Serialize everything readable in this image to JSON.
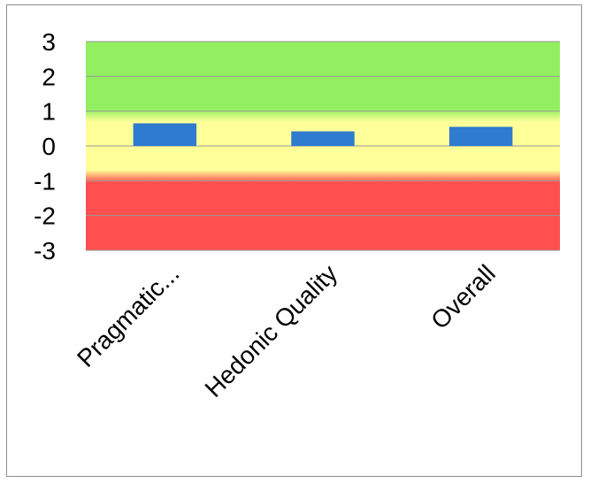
{
  "chart_data": {
    "type": "bar",
    "categories": [
      "Pragmatic...",
      "Hedonic Quality",
      "Overall"
    ],
    "series": [
      {
        "values": [
          0.65,
          0.42,
          0.55
        ],
        "color": "#2e7bcf"
      }
    ],
    "ylim": [
      -3,
      3
    ],
    "yticks": [
      "3",
      "2",
      "1",
      "0",
      "-1",
      "-2",
      "-3"
    ],
    "ytick_values": [
      3,
      2,
      1,
      0,
      -1,
      -2,
      -3
    ],
    "grid": true,
    "legend": "none",
    "background_bands": [
      {
        "from": 0.8,
        "to": 3,
        "color": "#92ef5f"
      },
      {
        "from": -0.8,
        "to": 0.8,
        "color": "#ffff99"
      },
      {
        "from": -3,
        "to": -0.8,
        "color": "#ff4f4f"
      }
    ],
    "xlabel": "",
    "ylabel": "",
    "title": ""
  }
}
